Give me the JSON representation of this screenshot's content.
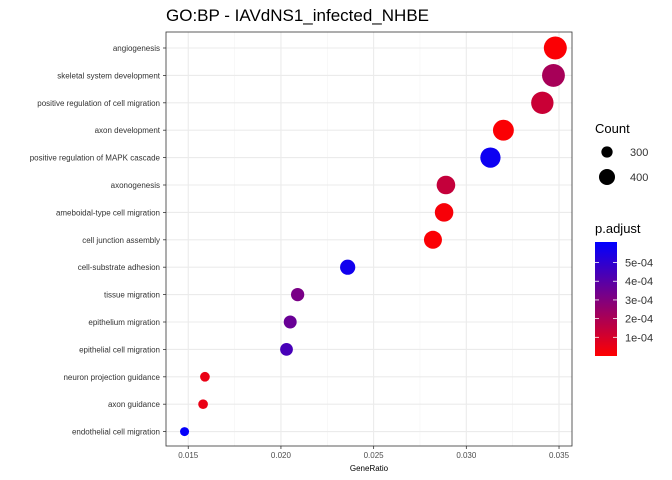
{
  "chart_data": {
    "type": "scatter",
    "title": "GO:BP - IAVdNS1_infected_NHBE",
    "xlabel": "GeneRatio",
    "ylabel": "",
    "xlim": [
      0.0138,
      0.0357
    ],
    "xticks": [
      0.015,
      0.02,
      0.025,
      0.03,
      0.035
    ],
    "xtick_labels": [
      "0.015",
      "0.020",
      "0.025",
      "0.030",
      "0.035"
    ],
    "categories": [
      "angiogenesis",
      "skeletal system development",
      "positive regulation of cell migration",
      "axon development",
      "positive regulation of MAPK cascade",
      "axonogenesis",
      "ameboidal-type cell migration",
      "cell junction assembly",
      "cell-substrate adhesion",
      "tissue migration",
      "epithelium migration",
      "epithelial cell migration",
      "neuron projection guidance",
      "axon guidance",
      "endothelial cell migration"
    ],
    "gene_ratio": [
      0.0348,
      0.0347,
      0.0341,
      0.032,
      0.0313,
      0.0289,
      0.0288,
      0.0282,
      0.0236,
      0.0209,
      0.0205,
      0.0203,
      0.0159,
      0.0158,
      0.0148
    ],
    "count": [
      440,
      438,
      430,
      405,
      395,
      368,
      367,
      358,
      312,
      280,
      275,
      272,
      222,
      221,
      210
    ],
    "p_adjust": [
      1e-05,
      0.00021,
      0.00013,
      1e-05,
      0.00058,
      0.00014,
      2e-05,
      1e-05,
      0.00057,
      0.00032,
      0.00036,
      0.00044,
      5e-05,
      5e-05,
      0.0006
    ],
    "size_legend": {
      "title": "Count",
      "values": [
        300,
        400
      ],
      "labels": [
        "300",
        "400"
      ]
    },
    "color_legend": {
      "title": "p.adjust",
      "low_color": "#ff0000",
      "high_color": "#0000ff",
      "range": [
        0.0,
        0.00061
      ],
      "tick_values": [
        0.0001,
        0.0002,
        0.0003,
        0.0004,
        0.0005
      ],
      "tick_labels": [
        "1e-04",
        "2e-04",
        "3e-04",
        "4e-04",
        "5e-04"
      ]
    },
    "grid": true,
    "legend_position": "right"
  }
}
